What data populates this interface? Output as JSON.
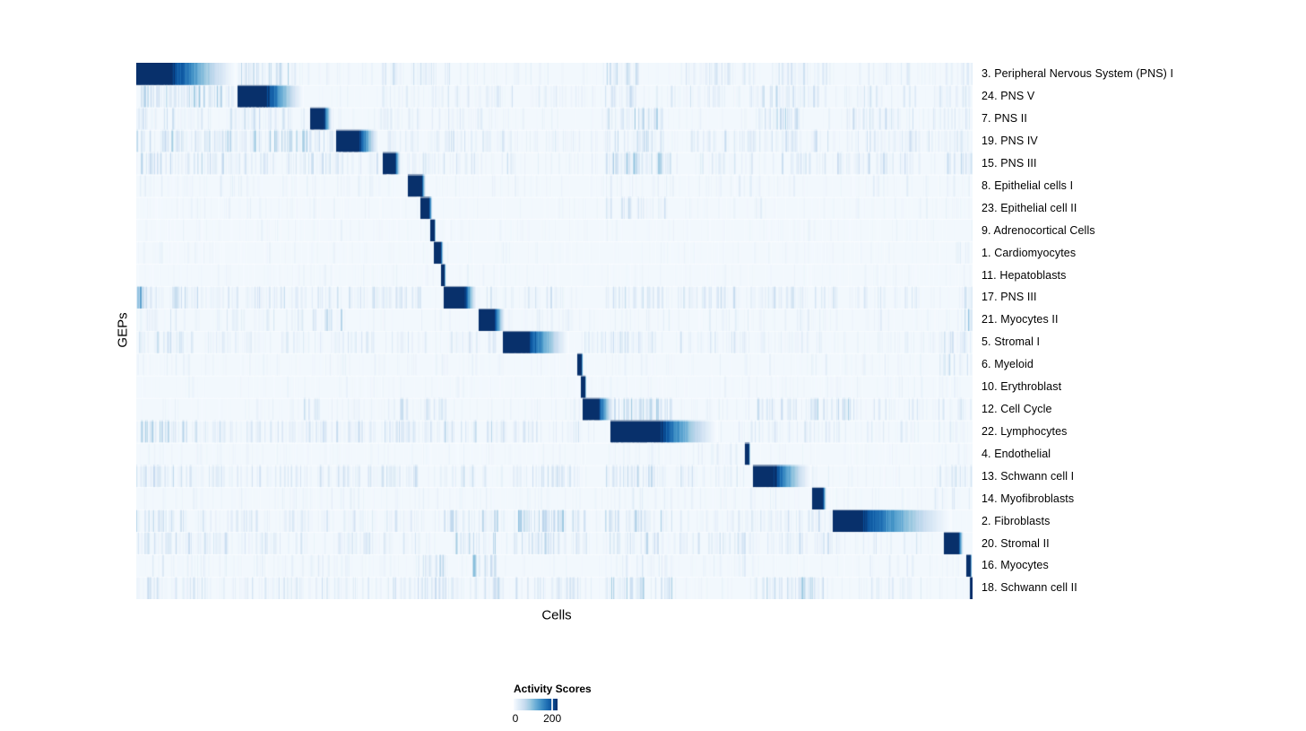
{
  "chart_data": {
    "type": "heatmap",
    "xlabel": "Cells",
    "ylabel": "GEPs",
    "colorbar": {
      "title": "Activity Scores",
      "min": 0,
      "max": 200,
      "tick_labels": [
        "0",
        "200"
      ],
      "tick_positions": [
        0.04,
        0.86
      ]
    },
    "colors": {
      "low": "#F7FBFF",
      "high": "#08306B"
    },
    "palette": [
      "#F7FBFF",
      "#DEEBF7",
      "#C6DBEF",
      "#9ECAE1",
      "#6BAED6",
      "#4292C6",
      "#2171B5",
      "#08519C",
      "#08306B"
    ],
    "rows": [
      {
        "label": "3. Peripheral Nervous System (PNS) I",
        "block": {
          "s": 0.0,
          "p": 0.041,
          "f": 0.119
        },
        "n": 0.1,
        "bands": [
          [
            0.12,
            0.19,
            0.5,
            0.4
          ],
          [
            0.29,
            0.38,
            0.35,
            0.25
          ],
          [
            0.56,
            0.6,
            0.5,
            0.3
          ],
          [
            0.65,
            0.74,
            0.35,
            0.22
          ],
          [
            0.76,
            0.83,
            0.4,
            0.25
          ],
          [
            0.86,
            0.93,
            0.3,
            0.15
          ],
          [
            0.95,
            1.0,
            0.3,
            0.18
          ]
        ]
      },
      {
        "label": "24. PNS V",
        "block": {
          "s": 0.122,
          "p": 0.155,
          "f": 0.2
        },
        "n": 0.1,
        "bands": [
          [
            0.0,
            0.12,
            0.6,
            0.45
          ],
          [
            0.29,
            0.45,
            0.3,
            0.22
          ],
          [
            0.47,
            0.52,
            0.3,
            0.2
          ],
          [
            0.56,
            0.6,
            0.5,
            0.35
          ],
          [
            0.62,
            0.7,
            0.3,
            0.2
          ],
          [
            0.73,
            0.83,
            0.45,
            0.3
          ],
          [
            0.86,
            0.94,
            0.3,
            0.2
          ],
          [
            0.95,
            1.0,
            0.35,
            0.25
          ]
        ]
      },
      {
        "label": "7. PNS II",
        "block": {
          "s": 0.208,
          "p": 0.224,
          "f": 0.234
        },
        "n": 0.09,
        "bands": [
          [
            0.0,
            0.2,
            0.35,
            0.25
          ],
          [
            0.29,
            0.45,
            0.3,
            0.2
          ],
          [
            0.56,
            0.63,
            0.55,
            0.4
          ],
          [
            0.74,
            0.8,
            0.45,
            0.35
          ],
          [
            0.84,
            0.93,
            0.35,
            0.25
          ],
          [
            0.95,
            1.0,
            0.3,
            0.2
          ]
        ]
      },
      {
        "label": "19. PNS IV",
        "block": {
          "s": 0.24,
          "p": 0.266,
          "f": 0.29
        },
        "n": 0.11,
        "bands": [
          [
            0.0,
            0.235,
            0.55,
            0.4
          ],
          [
            0.3,
            0.45,
            0.35,
            0.25
          ],
          [
            0.47,
            0.52,
            0.3,
            0.2
          ],
          [
            0.56,
            0.63,
            0.4,
            0.3
          ],
          [
            0.66,
            0.83,
            0.35,
            0.25
          ],
          [
            0.86,
            1.0,
            0.35,
            0.25
          ]
        ]
      },
      {
        "label": "15. PNS III",
        "block": {
          "s": 0.295,
          "p": 0.309,
          "f": 0.316
        },
        "n": 0.1,
        "bands": [
          [
            0.0,
            0.29,
            0.4,
            0.3
          ],
          [
            0.32,
            0.45,
            0.3,
            0.25
          ],
          [
            0.56,
            0.64,
            0.55,
            0.45
          ],
          [
            0.66,
            0.74,
            0.3,
            0.2
          ],
          [
            0.77,
            0.94,
            0.35,
            0.25
          ],
          [
            0.96,
            1.0,
            0.4,
            0.3
          ]
        ]
      },
      {
        "label": "8. Epithelial cells I",
        "block": {
          "s": 0.325,
          "p": 0.341,
          "f": 0.346
        },
        "n": 0.06,
        "bands": [
          [
            0.0,
            0.3,
            0.2,
            0.12
          ],
          [
            0.36,
            0.52,
            0.15,
            0.1
          ],
          [
            0.56,
            0.8,
            0.2,
            0.12
          ],
          [
            0.85,
            1.0,
            0.2,
            0.12
          ]
        ]
      },
      {
        "label": "23. Epithelial cell II",
        "block": {
          "s": 0.34,
          "p": 0.35,
          "f": 0.354
        },
        "n": 0.06,
        "bands": [
          [
            0.0,
            0.3,
            0.15,
            0.1
          ],
          [
            0.56,
            0.64,
            0.35,
            0.25
          ],
          [
            0.66,
            0.75,
            0.2,
            0.12
          ],
          [
            0.85,
            1.0,
            0.15,
            0.1
          ]
        ]
      },
      {
        "label": "9. Adrenocortical Cells",
        "block": {
          "s": 0.352,
          "p": 0.356,
          "f": 0.358
        },
        "n": 0.05,
        "bands": [
          [
            0.0,
            0.5,
            0.12,
            0.08
          ],
          [
            0.56,
            1.0,
            0.12,
            0.08
          ]
        ]
      },
      {
        "label": "1. Cardiomyocytes",
        "block": {
          "s": 0.356,
          "p": 0.364,
          "f": 0.367
        },
        "n": 0.05,
        "bands": [
          [
            0.0,
            0.5,
            0.12,
            0.08
          ],
          [
            0.56,
            0.9,
            0.12,
            0.08
          ],
          [
            0.97,
            1.0,
            0.3,
            0.25
          ]
        ]
      },
      {
        "label": "11. Hepatoblasts",
        "block": {
          "s": 0.365,
          "p": 0.368,
          "f": 0.37
        },
        "n": 0.05,
        "bands": [
          [
            0.0,
            0.5,
            0.12,
            0.08
          ],
          [
            0.56,
            1.0,
            0.12,
            0.08
          ]
        ]
      },
      {
        "label": "17. PNS III",
        "block": {
          "s": 0.368,
          "p": 0.392,
          "f": 0.407
        },
        "n": 0.1,
        "bands": [
          [
            0.0,
            0.01,
            0.9,
            0.7
          ],
          [
            0.01,
            0.34,
            0.4,
            0.3
          ],
          [
            0.41,
            0.52,
            0.3,
            0.22
          ],
          [
            0.56,
            0.63,
            0.4,
            0.3
          ],
          [
            0.65,
            0.84,
            0.4,
            0.28
          ],
          [
            0.86,
            0.94,
            0.25,
            0.18
          ],
          [
            0.99,
            1.0,
            0.8,
            0.5
          ]
        ]
      },
      {
        "label": "21. Myocytes II",
        "block": {
          "s": 0.41,
          "p": 0.428,
          "f": 0.441
        },
        "n": 0.08,
        "bands": [
          [
            0.0,
            0.2,
            0.25,
            0.18
          ],
          [
            0.21,
            0.25,
            0.4,
            0.3
          ],
          [
            0.45,
            0.52,
            0.2,
            0.15
          ],
          [
            0.6,
            0.9,
            0.2,
            0.12
          ],
          [
            0.99,
            1.0,
            0.9,
            0.6
          ]
        ]
      },
      {
        "label": "5. Stromal I",
        "block": {
          "s": 0.439,
          "p": 0.468,
          "f": 0.517
        },
        "n": 0.09,
        "bands": [
          [
            0.0,
            0.06,
            0.5,
            0.35
          ],
          [
            0.06,
            0.43,
            0.3,
            0.2
          ],
          [
            0.52,
            0.63,
            0.35,
            0.25
          ],
          [
            0.65,
            0.83,
            0.3,
            0.18
          ],
          [
            0.86,
            0.93,
            0.2,
            0.15
          ],
          [
            0.95,
            1.0,
            0.35,
            0.25
          ]
        ]
      },
      {
        "label": "6. Myeloid",
        "block": {
          "s": 0.528,
          "p": 0.532,
          "f": 0.534
        },
        "n": 0.06,
        "bands": [
          [
            0.0,
            0.5,
            0.15,
            0.1
          ],
          [
            0.56,
            0.94,
            0.15,
            0.1
          ],
          [
            0.96,
            1.0,
            0.4,
            0.3
          ]
        ]
      },
      {
        "label": "10. Erythroblast",
        "block": {
          "s": 0.532,
          "p": 0.536,
          "f": 0.538
        },
        "n": 0.05,
        "bands": [
          [
            0.0,
            0.5,
            0.12,
            0.08
          ],
          [
            0.56,
            1.0,
            0.12,
            0.08
          ]
        ]
      },
      {
        "label": "12. Cell Cycle",
        "block": {
          "s": 0.534,
          "p": 0.552,
          "f": 0.571
        },
        "n": 0.09,
        "bands": [
          [
            0.2,
            0.22,
            0.4,
            0.3
          ],
          [
            0.3,
            0.37,
            0.4,
            0.3
          ],
          [
            0.57,
            0.64,
            0.55,
            0.45
          ],
          [
            0.74,
            0.79,
            0.4,
            0.3
          ],
          [
            0.8,
            0.86,
            0.5,
            0.4
          ],
          [
            0.88,
            0.94,
            0.3,
            0.2
          ],
          [
            0.95,
            1.0,
            0.35,
            0.25
          ]
        ]
      },
      {
        "label": "22. Lymphocytes",
        "block": {
          "s": 0.568,
          "p": 0.625,
          "f": 0.695
        },
        "n": 0.1,
        "bands": [
          [
            0.0,
            0.1,
            0.45,
            0.35
          ],
          [
            0.1,
            0.3,
            0.35,
            0.25
          ],
          [
            0.3,
            0.44,
            0.4,
            0.3
          ],
          [
            0.45,
            0.53,
            0.35,
            0.25
          ],
          [
            0.72,
            0.85,
            0.3,
            0.2
          ],
          [
            0.86,
            0.94,
            0.25,
            0.18
          ],
          [
            0.95,
            1.0,
            0.3,
            0.22
          ]
        ]
      },
      {
        "label": "4. Endothelial",
        "block": {
          "s": 0.728,
          "p": 0.732,
          "f": 0.734
        },
        "n": 0.06,
        "bands": [
          [
            0.0,
            0.5,
            0.12,
            0.08
          ],
          [
            0.56,
            0.72,
            0.2,
            0.12
          ],
          [
            0.74,
            1.0,
            0.12,
            0.08
          ]
        ]
      },
      {
        "label": "13. Schwann cell I",
        "block": {
          "s": 0.738,
          "p": 0.761,
          "f": 0.807
        },
        "n": 0.1,
        "bands": [
          [
            0.0,
            0.06,
            0.5,
            0.35
          ],
          [
            0.06,
            0.34,
            0.35,
            0.25
          ],
          [
            0.36,
            0.44,
            0.3,
            0.22
          ],
          [
            0.45,
            0.53,
            0.4,
            0.3
          ],
          [
            0.56,
            0.63,
            0.5,
            0.35
          ],
          [
            0.65,
            0.72,
            0.35,
            0.25
          ],
          [
            0.96,
            1.0,
            0.4,
            0.3
          ]
        ]
      },
      {
        "label": "14. Myofibroblasts",
        "block": {
          "s": 0.809,
          "p": 0.821,
          "f": 0.825
        },
        "n": 0.07,
        "bands": [
          [
            0.0,
            0.5,
            0.15,
            0.1
          ],
          [
            0.56,
            0.8,
            0.2,
            0.12
          ],
          [
            0.95,
            1.0,
            0.25,
            0.18
          ]
        ]
      },
      {
        "label": "2. Fibroblasts",
        "block": {
          "s": 0.833,
          "p": 0.867,
          "f": 0.975
        },
        "n": 0.09,
        "bands": [
          [
            0.0,
            0.06,
            0.45,
            0.3
          ],
          [
            0.06,
            0.33,
            0.3,
            0.2
          ],
          [
            0.36,
            0.44,
            0.4,
            0.3
          ],
          [
            0.45,
            0.54,
            0.55,
            0.45
          ],
          [
            0.56,
            0.64,
            0.5,
            0.35
          ],
          [
            0.65,
            0.83,
            0.35,
            0.25
          ]
        ]
      },
      {
        "label": "20. Stromal II",
        "block": {
          "s": 0.966,
          "p": 0.983,
          "f": 0.989
        },
        "n": 0.09,
        "bands": [
          [
            0.0,
            0.06,
            0.4,
            0.3
          ],
          [
            0.06,
            0.35,
            0.35,
            0.25
          ],
          [
            0.38,
            0.43,
            0.45,
            0.35
          ],
          [
            0.45,
            0.54,
            0.4,
            0.3
          ],
          [
            0.56,
            0.63,
            0.4,
            0.3
          ],
          [
            0.65,
            0.84,
            0.35,
            0.25
          ],
          [
            0.86,
            0.94,
            0.25,
            0.18
          ]
        ]
      },
      {
        "label": "16. Myocytes",
        "block": {
          "s": 0.993,
          "p": 0.997,
          "f": 0.999
        },
        "n": 0.07,
        "bands": [
          [
            0.0,
            0.3,
            0.2,
            0.15
          ],
          [
            0.33,
            0.37,
            0.5,
            0.4
          ],
          [
            0.4,
            0.43,
            0.5,
            0.45
          ],
          [
            0.56,
            0.64,
            0.3,
            0.2
          ],
          [
            0.65,
            0.76,
            0.2,
            0.15
          ],
          [
            0.86,
            0.93,
            0.2,
            0.15
          ]
        ]
      },
      {
        "label": "18. Schwann cell II",
        "block": {
          "s": 0.997,
          "p": 1.0,
          "f": 1.0
        },
        "n": 0.09,
        "bands": [
          [
            0.0,
            0.14,
            0.35,
            0.25
          ],
          [
            0.15,
            0.3,
            0.3,
            0.22
          ],
          [
            0.3,
            0.44,
            0.35,
            0.28
          ],
          [
            0.45,
            0.54,
            0.3,
            0.22
          ],
          [
            0.56,
            0.64,
            0.5,
            0.4
          ],
          [
            0.74,
            0.82,
            0.5,
            0.4
          ],
          [
            0.86,
            0.94,
            0.25,
            0.18
          ]
        ]
      }
    ]
  }
}
